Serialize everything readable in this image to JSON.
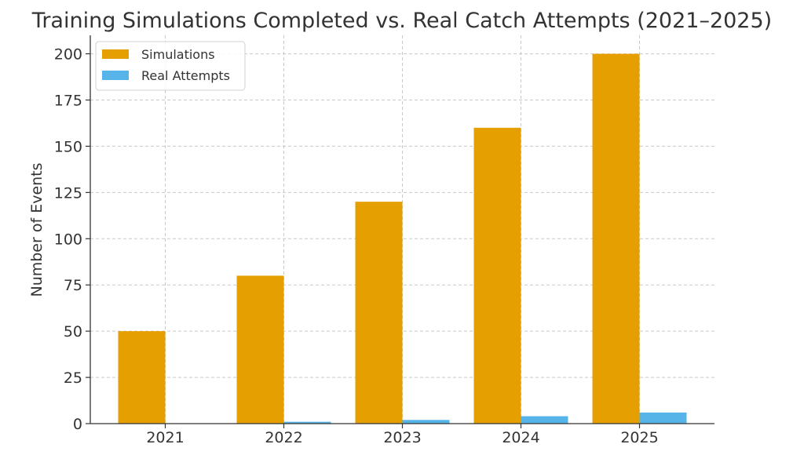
{
  "chart_data": {
    "type": "bar",
    "title": "Training Simulations Completed vs. Real Catch Attempts (2021–2025)",
    "xlabel": "",
    "ylabel": "Number of Events",
    "categories": [
      "2021",
      "2022",
      "2023",
      "2024",
      "2025"
    ],
    "series": [
      {
        "name": "Simulations",
        "values": [
          50,
          80,
          120,
          160,
          200
        ],
        "color": "#E69F00"
      },
      {
        "name": "Real Attempts",
        "values": [
          0,
          1,
          2,
          4,
          6
        ],
        "color": "#56B4E9"
      }
    ],
    "ylim": [
      0,
      210
    ],
    "yticks": [
      0,
      25,
      50,
      75,
      100,
      125,
      150,
      175,
      200
    ],
    "grid": true,
    "legend_position": "top-left"
  }
}
